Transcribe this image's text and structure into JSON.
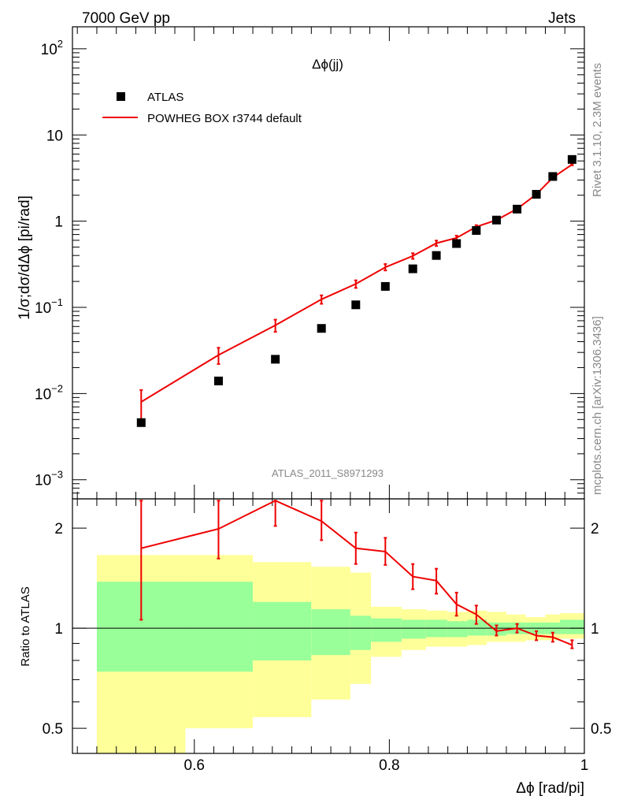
{
  "header": {
    "left": "7000 GeV pp",
    "right": "Jets"
  },
  "side_labels": {
    "rivet": "Rivet 3.1.10,  2.3M events",
    "site": "mcplots.cern.ch [arXiv:1306.3436]"
  },
  "chart_data": [
    {
      "type": "scatter",
      "title": "Δϕ(jj)",
      "watermark": "ATLAS_2011_S8971293",
      "ylabel": "1/σ;dσ/dΔϕ [pi/rad]",
      "xlabel": "Δϕ [rad/pi]",
      "yscale": "log",
      "xlim": [
        0.475,
        1.0
      ],
      "ylim": [
        0.0006,
        180
      ],
      "y_ticks": [
        {
          "value": 0.001,
          "base": "10",
          "exp": "−3"
        },
        {
          "value": 0.01,
          "base": "10",
          "exp": "−2"
        },
        {
          "value": 0.1,
          "base": "10",
          "exp": "−1"
        },
        {
          "value": 1,
          "base": "1",
          "exp": ""
        },
        {
          "value": 10,
          "base": "10",
          "exp": ""
        },
        {
          "value": 100,
          "base": "10",
          "exp": "2"
        }
      ],
      "legend": [
        "ATLAS",
        "POWHEG BOX r3744 default"
      ],
      "x": [
        0.5455,
        0.6248,
        0.6831,
        0.7304,
        0.7656,
        0.7959,
        0.8241,
        0.8482,
        0.8689,
        0.8892,
        0.9099,
        0.931,
        0.9508,
        0.9676,
        0.9874
      ],
      "series": [
        {
          "name": "ATLAS",
          "values": [
            0.0046,
            0.014,
            0.025,
            0.057,
            0.107,
            0.175,
            0.28,
            0.4,
            0.55,
            0.78,
            1.03,
            1.38,
            2.05,
            3.3,
            5.2
          ]
        },
        {
          "name": "POWHEG BOX r3744 default",
          "values": [
            0.008,
            0.028,
            0.062,
            0.124,
            0.187,
            0.292,
            0.395,
            0.555,
            0.64,
            0.86,
            1.03,
            1.39,
            2.05,
            3.2,
            4.55
          ],
          "err_low": [
            0.0047,
            0.022,
            0.052,
            0.11,
            0.168,
            0.268,
            0.365,
            0.515,
            0.6,
            0.82,
            0.99,
            1.35,
            2.0,
            3.14,
            4.45
          ],
          "err_high": [
            0.011,
            0.034,
            0.072,
            0.138,
            0.206,
            0.318,
            0.425,
            0.595,
            0.68,
            0.9,
            1.07,
            1.43,
            2.1,
            3.26,
            4.65
          ]
        }
      ]
    },
    {
      "type": "line",
      "ylabel": "Ratio to ATLAS",
      "yscale": "log",
      "xlim": [
        0.475,
        1.0
      ],
      "ylim": [
        0.42,
        2.45
      ],
      "y_ticks": [
        0.5,
        1,
        2
      ],
      "x_ticks": [
        "0.6",
        "0.8",
        "1"
      ],
      "bands": {
        "edges": [
          0.5,
          0.5909,
          0.66,
          0.72,
          0.76,
          0.7812,
          0.8125,
          0.8375,
          0.8594,
          0.88,
          0.9,
          0.92,
          0.94,
          0.96,
          0.975,
          1.0
        ],
        "green_low": [
          0.74,
          0.74,
          0.8,
          0.83,
          0.86,
          0.91,
          0.93,
          0.94,
          0.94,
          0.95,
          0.95,
          0.96,
          0.96,
          0.96,
          0.96
        ],
        "green_high": [
          1.38,
          1.38,
          1.2,
          1.14,
          1.09,
          1.07,
          1.06,
          1.06,
          1.05,
          1.06,
          1.04,
          1.04,
          1.04,
          1.04,
          1.06
        ],
        "yellow_low": [
          0.25,
          0.5,
          0.54,
          0.61,
          0.68,
          0.82,
          0.86,
          0.88,
          0.88,
          0.89,
          0.91,
          0.91,
          0.92,
          0.92,
          0.93
        ],
        "yellow_high": [
          1.66,
          1.66,
          1.58,
          1.53,
          1.47,
          1.16,
          1.14,
          1.13,
          1.12,
          1.13,
          1.12,
          1.1,
          1.08,
          1.1,
          1.11
        ]
      },
      "series": [
        {
          "name": "POWHEG BOX r3744 default",
          "values": [
            1.74,
            1.99,
            2.42,
            2.1,
            1.74,
            1.7,
            1.43,
            1.39,
            1.18,
            1.1,
            0.98,
            1.0,
            0.95,
            0.94,
            0.89
          ],
          "err_low": [
            1.06,
            1.62,
            2.03,
            1.84,
            1.56,
            1.55,
            1.31,
            1.27,
            1.09,
            1.03,
            0.95,
            0.97,
            0.92,
            0.91,
            0.87
          ],
          "err_high": [
            2.42,
            2.42,
            2.42,
            2.42,
            1.94,
            1.87,
            1.56,
            1.51,
            1.28,
            1.17,
            1.02,
            1.03,
            0.98,
            0.97,
            0.92
          ]
        }
      ]
    }
  ],
  "colors": {
    "data": "#000000",
    "mc": "#ee0000",
    "band_inner": "#99ff99",
    "band_outer": "#ffff99",
    "axis": "#000000",
    "label_gray": "#888888"
  }
}
